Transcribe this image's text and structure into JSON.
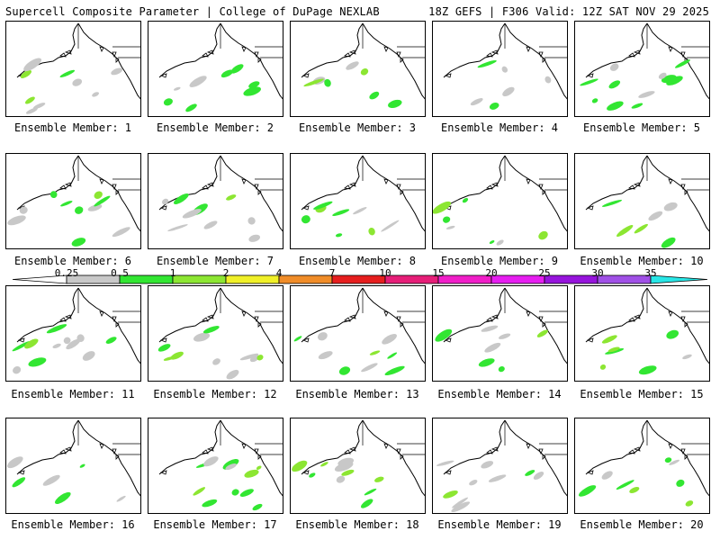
{
  "header": {
    "left": "Supercell Composite Parameter | College of DuPage NEXLAB",
    "right": "18Z GEFS | F306 Valid: 12Z SAT NOV 29 2025"
  },
  "member_label_prefix": "Ensemble Member:",
  "members": [
    {
      "label": "Ensemble Member: 1"
    },
    {
      "label": "Ensemble Member: 2"
    },
    {
      "label": "Ensemble Member: 3"
    },
    {
      "label": "Ensemble Member: 4"
    },
    {
      "label": "Ensemble Member: 5"
    },
    {
      "label": "Ensemble Member: 6"
    },
    {
      "label": "Ensemble Member: 7"
    },
    {
      "label": "Ensemble Member: 8"
    },
    {
      "label": "Ensemble Member: 9"
    },
    {
      "label": "Ensemble Member: 10"
    },
    {
      "label": "Ensemble Member: 11"
    },
    {
      "label": "Ensemble Member: 12"
    },
    {
      "label": "Ensemble Member: 13"
    },
    {
      "label": "Ensemble Member: 14"
    },
    {
      "label": "Ensemble Member: 15"
    },
    {
      "label": "Ensemble Member: 16"
    },
    {
      "label": "Ensemble Member: 17"
    },
    {
      "label": "Ensemble Member: 18"
    },
    {
      "label": "Ensemble Member: 19"
    },
    {
      "label": "Ensemble Member: 20"
    }
  ],
  "colorbar": {
    "labels": [
      "0.25",
      "0.5",
      "1",
      "2",
      "4",
      "7",
      "10",
      "15",
      "20",
      "25",
      "30",
      "35"
    ],
    "colors": [
      "#c8c8c8",
      "#32e632",
      "#8ce632",
      "#f0f028",
      "#f08c28",
      "#e61e1e",
      "#e61e78",
      "#f01ec8",
      "#e61ef0",
      "#9614dc",
      "#a050e6",
      "#28e6e6"
    ]
  }
}
